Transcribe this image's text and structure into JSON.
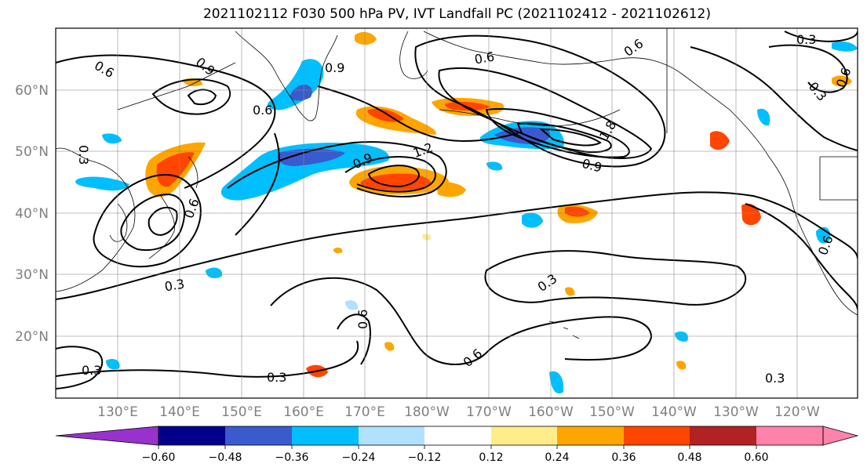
{
  "title": "2021102112 F030 500 hPa PV, IVT Landfall PC (2021102412 - 2021102612)",
  "lat_labels": [
    "60°N",
    "50°N",
    "40°N",
    "30°N",
    "20°N"
  ],
  "lon_labels": [
    "130°E",
    "140°E",
    "150°E",
    "160°E",
    "170°E",
    "180°W",
    "170°W",
    "160°W",
    "150°W",
    "140°W",
    "130°W",
    "120°W"
  ],
  "contour_labels": [
    "0.6",
    "0.9",
    "0.6",
    "0.3",
    "0.6",
    "0.9",
    "1.2",
    "0.9",
    "0.6",
    "0.6",
    "1.8",
    "0.9",
    "0.3",
    "0.6",
    "0.3",
    "0.3",
    "0.3",
    "0.6",
    "0.6",
    "0.3",
    "0.3",
    "0.3",
    "0.6"
  ],
  "colorbar": {
    "ticks": [
      "−0.60",
      "−0.48",
      "−0.36",
      "−0.24",
      "−0.12",
      "0.12",
      "0.24",
      "0.36",
      "0.48",
      "0.60"
    ],
    "colors": [
      "#9932cc",
      "#00008b",
      "#3a5bcd",
      "#00bfff",
      "#b0e2ff",
      "#ffffff",
      "#ffec8b",
      "#ffa500",
      "#ff4500",
      "#b22222",
      "#ff82ab"
    ]
  },
  "shading_colors": {
    "neg_weak": "#b0e2ff",
    "neg_mid": "#00bfff",
    "neg_strong": "#3a5bcd",
    "neg_max": "#00008b",
    "pos_weak": "#ffec8b",
    "pos_mid": "#ffa500",
    "pos_strong": "#ff4500",
    "pos_max": "#b22222"
  }
}
